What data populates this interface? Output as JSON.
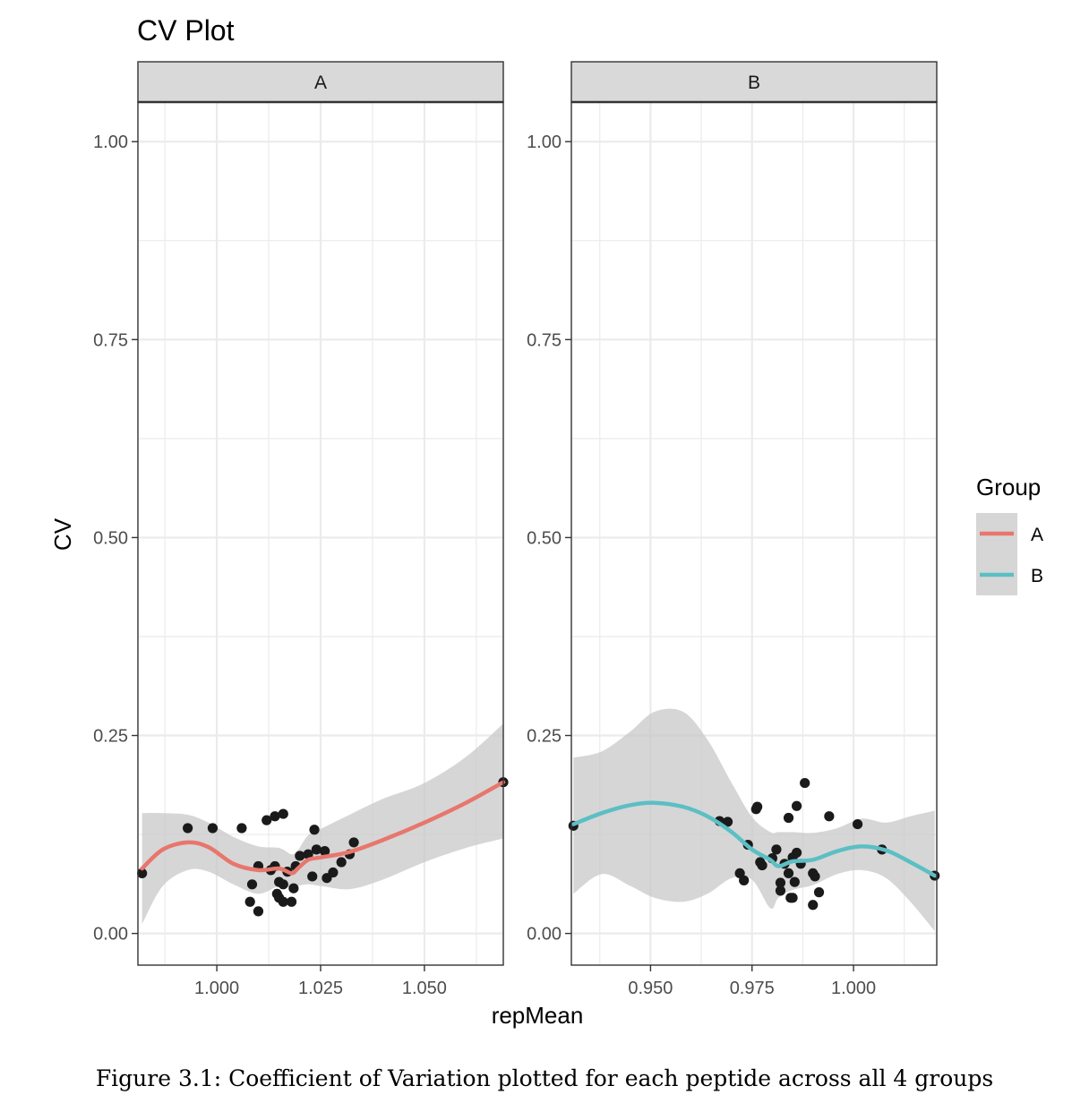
{
  "figure_caption": "Figure 3.1: Coefficient of Variation plotted for each peptide across all 4 groups",
  "chart_data": {
    "type": "scatter",
    "title": "CV Plot",
    "xlabel": "repMean",
    "ylabel": "CV",
    "legend": {
      "title": "Group",
      "placement": "right",
      "entries": [
        {
          "label": "A",
          "color": "#e8766c"
        },
        {
          "label": "B",
          "color": "#5bbfc4"
        }
      ]
    },
    "colors": {
      "points": "#1a1a1a",
      "ribbon": "#c8c8c8",
      "strip_fill": "#d9d9d9",
      "grid": "#ebebeb",
      "border": "#333333"
    },
    "grid": true,
    "panels": [
      {
        "strip": "A",
        "xlim": [
          0.981,
          1.069
        ],
        "ylim": [
          -0.04,
          1.05
        ],
        "x_ticks": [
          1.0,
          1.025,
          1.05
        ],
        "x_tick_labels": [
          "1.000",
          "1.025",
          "1.050"
        ],
        "y_ticks": [
          0.0,
          0.25,
          0.5,
          0.75,
          1.0
        ],
        "y_tick_labels": [
          "0.00",
          "0.25",
          "0.50",
          "0.75",
          "1.00"
        ],
        "points": [
          [
            0.982,
            0.076
          ],
          [
            0.993,
            0.133
          ],
          [
            0.999,
            0.133
          ],
          [
            1.006,
            0.133
          ],
          [
            1.008,
            0.04
          ],
          [
            1.0085,
            0.062
          ],
          [
            1.01,
            0.028
          ],
          [
            1.01,
            0.085
          ],
          [
            1.012,
            0.143
          ],
          [
            1.013,
            0.08
          ],
          [
            1.014,
            0.148
          ],
          [
            1.014,
            0.085
          ],
          [
            1.0145,
            0.05
          ],
          [
            1.015,
            0.045
          ],
          [
            1.015,
            0.065
          ],
          [
            1.016,
            0.151
          ],
          [
            1.016,
            0.04
          ],
          [
            1.016,
            0.062
          ],
          [
            1.017,
            0.078
          ],
          [
            1.018,
            0.04
          ],
          [
            1.0185,
            0.057
          ],
          [
            1.019,
            0.085
          ],
          [
            1.02,
            0.098
          ],
          [
            1.022,
            0.1
          ],
          [
            1.023,
            0.072
          ],
          [
            1.0235,
            0.131
          ],
          [
            1.024,
            0.106
          ],
          [
            1.026,
            0.104
          ],
          [
            1.0265,
            0.07
          ],
          [
            1.028,
            0.077
          ],
          [
            1.03,
            0.09
          ],
          [
            1.032,
            0.1
          ],
          [
            1.033,
            0.115
          ],
          [
            1.069,
            0.191
          ]
        ],
        "smooth": {
          "x": [
            0.982,
            0.987,
            0.993,
            0.998,
            1.004,
            1.01,
            1.015,
            1.018,
            1.0195,
            1.022,
            1.025,
            1.032,
            1.04,
            1.05,
            1.06,
            1.069
          ],
          "y": [
            0.082,
            0.106,
            0.115,
            0.109,
            0.088,
            0.08,
            0.082,
            0.076,
            0.082,
            0.093,
            0.096,
            0.103,
            0.118,
            0.14,
            0.165,
            0.191
          ],
          "lower": [
            0.012,
            0.06,
            0.08,
            0.078,
            0.062,
            0.05,
            0.06,
            0.058,
            0.06,
            0.062,
            0.06,
            0.056,
            0.068,
            0.09,
            0.108,
            0.12
          ],
          "upper": [
            0.152,
            0.152,
            0.15,
            0.14,
            0.122,
            0.11,
            0.108,
            0.1,
            0.105,
            0.124,
            0.132,
            0.15,
            0.17,
            0.19,
            0.223,
            0.265
          ]
        },
        "smooth_color": "#e8766c"
      },
      {
        "strip": "B",
        "xlim": [
          0.9305,
          1.0205
        ],
        "ylim": [
          -0.04,
          1.05
        ],
        "x_ticks": [
          0.95,
          0.975,
          1.0
        ],
        "x_tick_labels": [
          "0.950",
          "0.975",
          "1.000"
        ],
        "y_ticks": [
          0.0,
          0.25,
          0.5,
          0.75,
          1.0
        ],
        "y_tick_labels": [
          "0.00",
          "0.25",
          "0.50",
          "0.75",
          "1.00"
        ],
        "points": [
          [
            0.931,
            0.136
          ],
          [
            0.967,
            0.142
          ],
          [
            0.969,
            0.141
          ],
          [
            0.972,
            0.076
          ],
          [
            0.973,
            0.067
          ],
          [
            0.974,
            0.112
          ],
          [
            0.976,
            0.157
          ],
          [
            0.9763,
            0.16
          ],
          [
            0.977,
            0.09
          ],
          [
            0.9775,
            0.086
          ],
          [
            0.98,
            0.095
          ],
          [
            0.981,
            0.106
          ],
          [
            0.982,
            0.054
          ],
          [
            0.982,
            0.064
          ],
          [
            0.983,
            0.088
          ],
          [
            0.984,
            0.076
          ],
          [
            0.984,
            0.146
          ],
          [
            0.9845,
            0.045
          ],
          [
            0.985,
            0.045
          ],
          [
            0.985,
            0.096
          ],
          [
            0.9855,
            0.065
          ],
          [
            0.986,
            0.102
          ],
          [
            0.986,
            0.161
          ],
          [
            0.987,
            0.088
          ],
          [
            0.988,
            0.19
          ],
          [
            0.99,
            0.076
          ],
          [
            0.99,
            0.036
          ],
          [
            0.9905,
            0.072
          ],
          [
            0.9915,
            0.052
          ],
          [
            0.994,
            0.148
          ],
          [
            1.001,
            0.138
          ],
          [
            1.007,
            0.106
          ],
          [
            1.02,
            0.073
          ]
        ],
        "smooth": {
          "x": [
            0.931,
            0.938,
            0.945,
            0.951,
            0.958,
            0.964,
            0.97,
            0.975,
            0.9795,
            0.9815,
            0.985,
            0.99,
            0.996,
            1.002,
            1.008,
            1.014,
            1.02
          ],
          "y": [
            0.138,
            0.152,
            0.162,
            0.165,
            0.16,
            0.148,
            0.128,
            0.106,
            0.093,
            0.085,
            0.091,
            0.093,
            0.104,
            0.11,
            0.105,
            0.09,
            0.073
          ],
          "lower": [
            0.05,
            0.075,
            0.06,
            0.045,
            0.04,
            0.05,
            0.07,
            0.068,
            0.032,
            0.045,
            0.055,
            0.061,
            0.075,
            0.08,
            0.07,
            0.04,
            0.003
          ],
          "upper": [
            0.222,
            0.23,
            0.255,
            0.28,
            0.28,
            0.245,
            0.19,
            0.147,
            0.128,
            0.128,
            0.128,
            0.127,
            0.133,
            0.145,
            0.14,
            0.148,
            0.155
          ]
        },
        "smooth_color": "#5bbfc4"
      }
    ]
  }
}
